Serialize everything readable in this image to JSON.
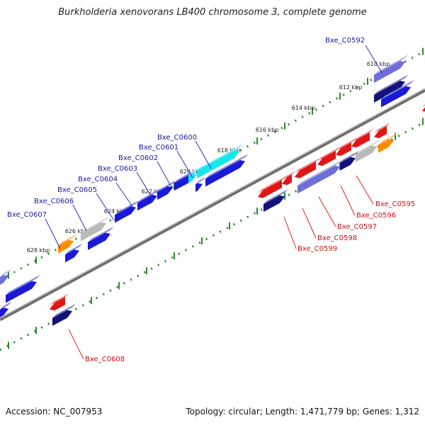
{
  "title": "Burkholderia xenovorans LB400 chromosome 3, complete genome",
  "footer": {
    "accession_label": "Accession: NC_007953",
    "topology_label": "Topology: circular; Length: 1,471,779 bp; Genes: 1,312"
  },
  "colors": {
    "backbone": "#7a7a7a",
    "tick_dots": "#2a8a2a",
    "label_forward": "#1a1aa0",
    "label_reverse": "#cc1111",
    "label_line_forward": "#2b2bd0",
    "label_line_reverse": "#dd2222"
  },
  "ticks": [
    "610 kbp",
    "612 kbp",
    "614 kbp",
    "616 kbp",
    "618 kbp",
    "620 kbp",
    "622 kbp",
    "624 kbp",
    "626 kbp",
    "628 kbp"
  ],
  "genes_forward": [
    "Bxe_C0592",
    "Bxe_C0600",
    "Bxe_C0601",
    "Bxe_C0602",
    "Bxe_C0603",
    "Bxe_C0604",
    "Bxe_C0605",
    "Bxe_C0606",
    "Bxe_C0607"
  ],
  "genes_reverse": [
    "Bxe_C0595",
    "Bxe_C0596",
    "Bxe_C0597",
    "Bxe_C0598",
    "Bxe_C0599",
    "Bxe_C0608"
  ]
}
